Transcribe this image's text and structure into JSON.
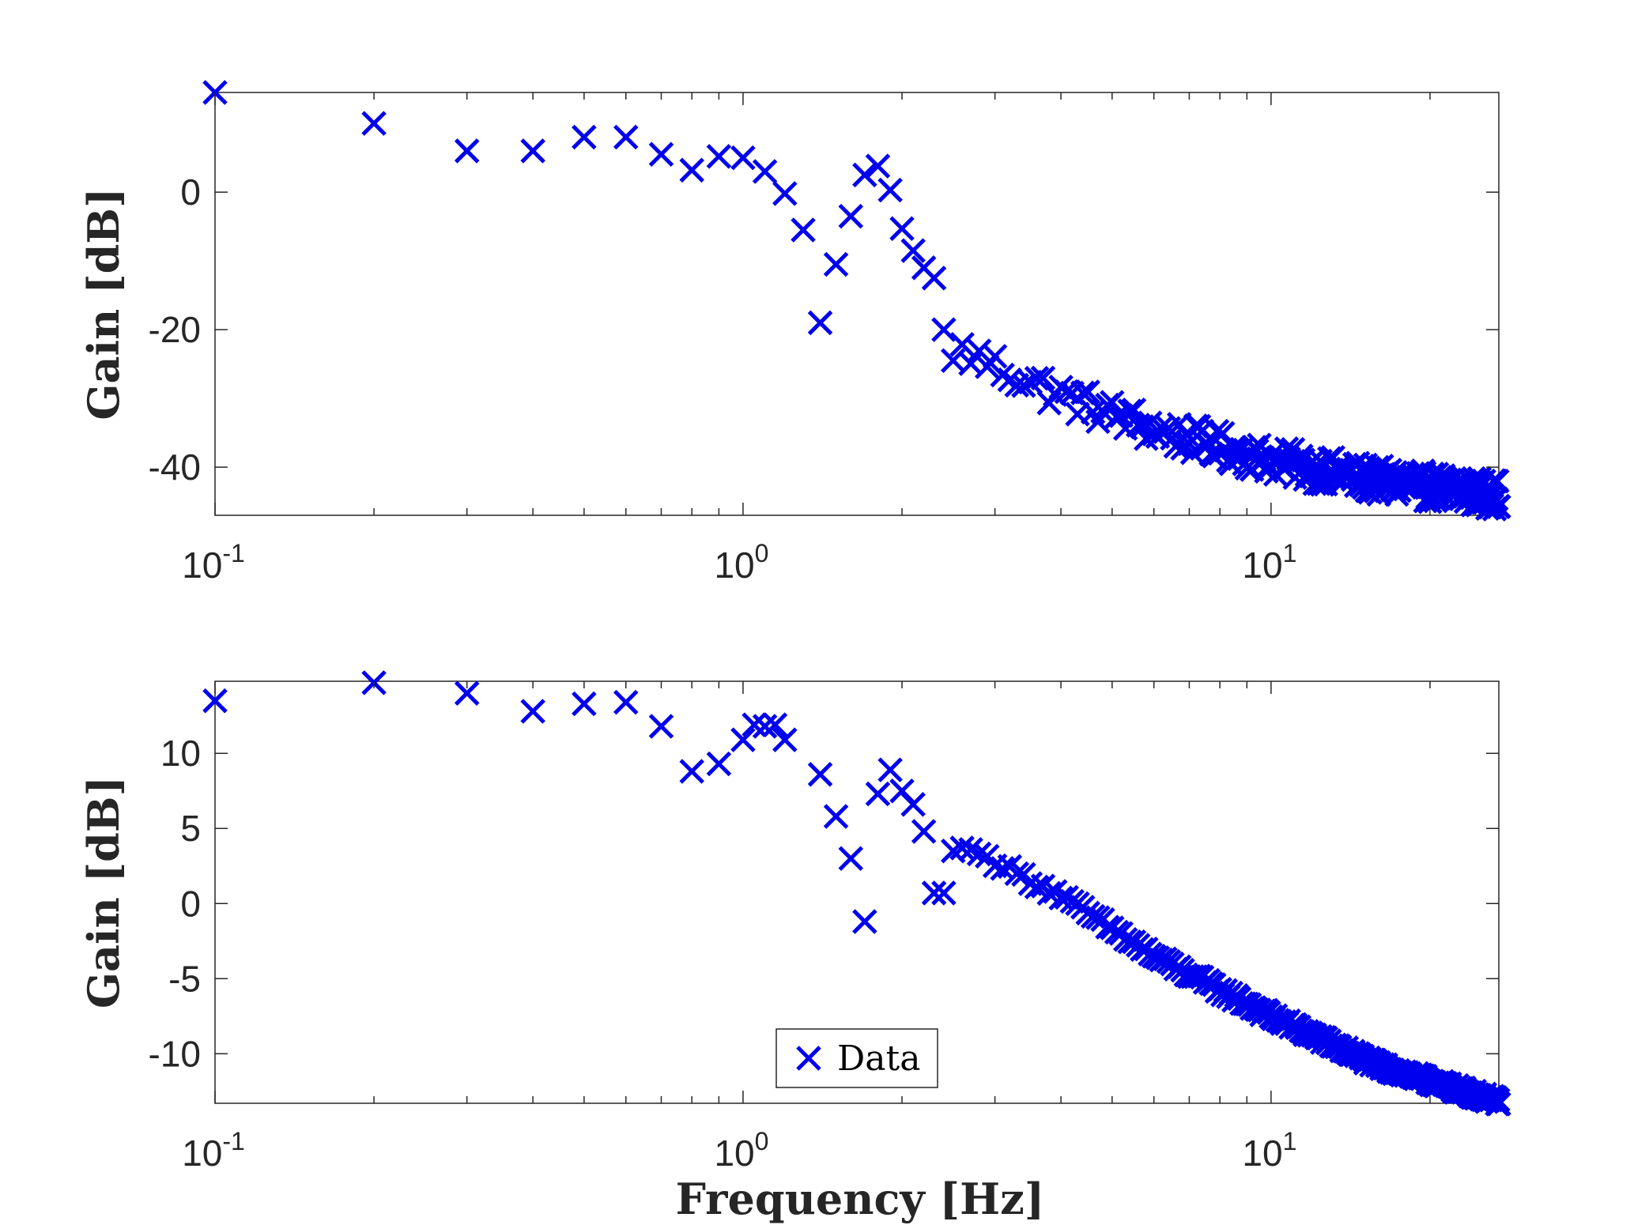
{
  "colors": {
    "marker": "#0000ee",
    "axis": "#262626",
    "background": "#ffffff"
  },
  "chart_data": [
    {
      "type": "scatter",
      "marker": "x",
      "xscale": "log",
      "xlim": [
        0.1,
        27
      ],
      "ylim": [
        -47,
        14.5
      ],
      "xticks": [
        0.1,
        1,
        10
      ],
      "xtick_labels": [
        {
          "base": "10",
          "exp": "-1"
        },
        {
          "base": "10",
          "exp": "0"
        },
        {
          "base": "10",
          "exp": "1"
        }
      ],
      "yticks": [
        0,
        -20,
        -40
      ],
      "ytick_labels": [
        "0",
        "-20",
        "-40"
      ],
      "ylabel": "Gain [dB]",
      "xlabel": "",
      "grid": false,
      "series": [
        {
          "marker_color": "#0000ee",
          "x": [
            0.1,
            0.2,
            0.3,
            0.4,
            0.5,
            0.6,
            0.7,
            0.8,
            0.9,
            1.0,
            1.1,
            1.2,
            1.3,
            1.4,
            1.5,
            1.6,
            1.7,
            1.8,
            1.9,
            2.0,
            2.1,
            2.2,
            2.3,
            2.4,
            2.5
          ],
          "y": [
            14.5,
            10,
            6,
            6,
            8,
            8,
            5.5,
            3.2,
            5.2,
            5,
            3,
            -0.2,
            -5.5,
            -19,
            -10.5,
            -3.5,
            2.5,
            3.8,
            0.3,
            -5.3,
            -8.5,
            -11,
            -12.5,
            -20,
            -24.5
          ],
          "trend": {
            "x_range": [
              2.5,
              27
            ],
            "anchors": [
              [
                2.5,
                -22.5
              ],
              [
                4,
                -29.5
              ],
              [
                6,
                -34.5
              ],
              [
                10,
                -39
              ],
              [
                16,
                -42
              ],
              [
                27,
                -44
              ]
            ],
            "step": 0.1,
            "scatter_db": 2.2
          }
        }
      ]
    },
    {
      "type": "scatter",
      "marker": "x",
      "xscale": "log",
      "xlim": [
        0.1,
        27
      ],
      "ylim": [
        -13.3,
        14.8
      ],
      "xticks": [
        0.1,
        1,
        10
      ],
      "xtick_labels": [
        {
          "base": "10",
          "exp": "-1"
        },
        {
          "base": "10",
          "exp": "0"
        },
        {
          "base": "10",
          "exp": "1"
        }
      ],
      "yticks": [
        10,
        5,
        0,
        -5,
        -10
      ],
      "ytick_labels": [
        "10",
        "5",
        "0",
        "-5",
        "-10"
      ],
      "ylabel": "Gain [dB]",
      "xlabel": "Frequency [Hz]",
      "grid": false,
      "legend": {
        "entries": [
          "Data"
        ],
        "location": "bottom-center"
      },
      "series": [
        {
          "name": "Data",
          "marker_color": "#0000ee",
          "x": [
            0.1,
            0.2,
            0.3,
            0.4,
            0.5,
            0.6,
            0.7,
            0.8,
            0.9,
            1.0,
            1.05,
            1.1,
            1.15,
            1.2,
            1.4,
            1.5,
            1.6,
            1.7,
            1.8,
            1.9,
            2.0,
            2.1,
            2.2,
            2.3,
            2.4,
            2.5,
            2.6,
            2.7,
            2.8
          ],
          "y": [
            13.5,
            14.7,
            14,
            12.8,
            13.3,
            13.4,
            11.8,
            8.8,
            9.3,
            10.9,
            11.9,
            11.8,
            11.9,
            10.9,
            8.6,
            5.8,
            3.0,
            -1.2,
            7.3,
            8.9,
            7.5,
            6.6,
            4.8,
            0.7,
            0.7,
            3.5,
            3.7,
            3.6,
            3.3
          ],
          "trend": {
            "x_range": [
              2.8,
              27
            ],
            "anchors": [
              [
                2.8,
                3.3
              ],
              [
                4,
                0.5
              ],
              [
                6,
                -3.5
              ],
              [
                10,
                -7.5
              ],
              [
                16,
                -10.8
              ],
              [
                27,
                -13.2
              ]
            ],
            "step": 0.1,
            "scatter_db": 0.25
          }
        }
      ]
    }
  ]
}
